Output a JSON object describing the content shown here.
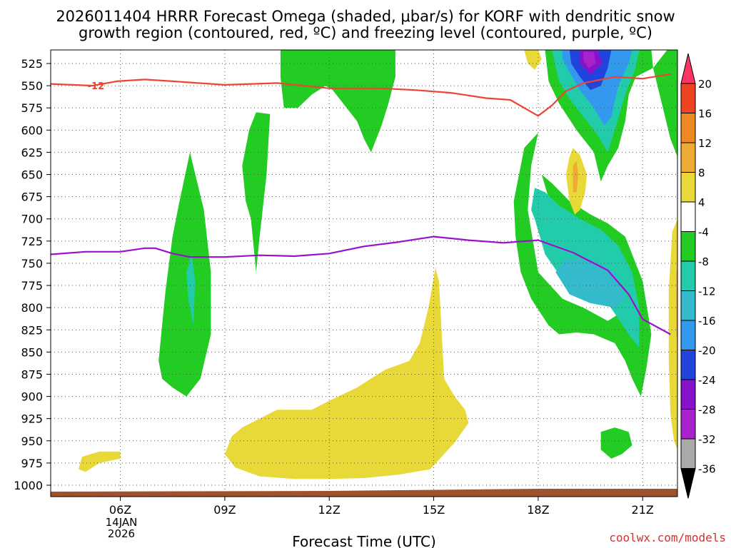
{
  "title": {
    "line1": "2026011404 HRRR Forecast Omega (shaded, μbar/s) for KORF with dendritic snow",
    "line2": "growth region (contoured, red, ºC) and freezing level (contoured, purple, ºC)"
  },
  "credit": "coolwx.com/models",
  "colors": {
    "dgz_line": "#ee4433",
    "freezing_line": "#9911cc",
    "terrain": "#a0522d",
    "grid": "#555555"
  },
  "chart_data": {
    "type": "time-height",
    "xlabel": "Forecast Time (UTC)",
    "ylabel": "",
    "x_ticks": [
      "06Z",
      "09Z",
      "12Z",
      "15Z",
      "18Z",
      "21Z"
    ],
    "x_tick_hours": [
      6,
      9,
      12,
      15,
      18,
      21
    ],
    "x_range_hours": [
      4,
      22
    ],
    "date_label": [
      "14JAN",
      "2026"
    ],
    "y_ticks": [
      525,
      550,
      575,
      600,
      625,
      650,
      675,
      700,
      725,
      750,
      775,
      800,
      825,
      850,
      875,
      900,
      925,
      950,
      975,
      1000
    ],
    "y_range_mb": [
      1002,
      510
    ],
    "dgz_contour_label": "-12",
    "colorbar": {
      "labels": [
        "20",
        "16",
        "12",
        "8",
        "4",
        "-4",
        "-8",
        "-12",
        "-16",
        "-20",
        "-24",
        "-28",
        "-32",
        "-36"
      ],
      "colors": [
        "#ff3366",
        "#ee4422",
        "#ee8822",
        "#eeaa33",
        "#e8d838",
        "#ffffff",
        "#22cc22",
        "#22ccaa",
        "#33bbcc",
        "#3399ee",
        "#2244dd",
        "#8811cc",
        "#aa22cc",
        "#aaaaaa",
        "#000000"
      ]
    },
    "series": [
      {
        "name": "-12",
        "color": "#ee4433",
        "points": [
          [
            4,
            548
          ],
          [
            5.2,
            550
          ],
          [
            5.9,
            545
          ],
          [
            6.7,
            543
          ],
          [
            7.5,
            545
          ],
          [
            9,
            549
          ],
          [
            10.5,
            547
          ],
          [
            12,
            553
          ],
          [
            13.5,
            553
          ],
          [
            14.5,
            555
          ],
          [
            15.5,
            558
          ],
          [
            16.5,
            564
          ],
          [
            17.2,
            566
          ],
          [
            18,
            584
          ],
          [
            18.4,
            572
          ],
          [
            18.8,
            556
          ],
          [
            19.3,
            547
          ],
          [
            20.2,
            540
          ],
          [
            21,
            542
          ],
          [
            21.8,
            537
          ]
        ]
      },
      {
        "name": "freezing",
        "color": "#9911cc",
        "points": [
          [
            4,
            740
          ],
          [
            5,
            737
          ],
          [
            6,
            737
          ],
          [
            6.7,
            733
          ],
          [
            7,
            733
          ],
          [
            7.5,
            739
          ],
          [
            8,
            743
          ],
          [
            9,
            743
          ],
          [
            10,
            741
          ],
          [
            11,
            742
          ],
          [
            12,
            739
          ],
          [
            13,
            731
          ],
          [
            14,
            726
          ],
          [
            15,
            720
          ],
          [
            16,
            724
          ],
          [
            17,
            727
          ],
          [
            18,
            724
          ],
          [
            19,
            738
          ],
          [
            20,
            758
          ],
          [
            20.6,
            785
          ],
          [
            21,
            813
          ],
          [
            21.8,
            830
          ]
        ]
      }
    ],
    "regions": [
      {
        "level": "-8",
        "color": "#22cc22",
        "polygon": [
          [
            7.1,
            860
          ],
          [
            7.2,
            820
          ],
          [
            7.3,
            780
          ],
          [
            7.5,
            720
          ],
          [
            7.7,
            680
          ],
          [
            8,
            625
          ],
          [
            8.4,
            690
          ],
          [
            8.6,
            760
          ],
          [
            8.6,
            830
          ],
          [
            8.3,
            880
          ],
          [
            7.9,
            900
          ],
          [
            7.5,
            890
          ],
          [
            7.2,
            880
          ]
        ]
      },
      {
        "level": "-12",
        "color": "#22ccaa",
        "polygon": [
          [
            7.9,
            760
          ],
          [
            8.05,
            740
          ],
          [
            8.15,
            770
          ],
          [
            8.1,
            820
          ],
          [
            7.95,
            790
          ]
        ]
      },
      {
        "level": "-8",
        "color": "#22cc22",
        "polygon": [
          [
            9.5,
            640
          ],
          [
            9.7,
            600
          ],
          [
            9.9,
            580
          ],
          [
            10.3,
            582
          ],
          [
            10.2,
            650
          ],
          [
            10,
            720
          ],
          [
            9.9,
            760
          ],
          [
            9.75,
            700
          ],
          [
            9.6,
            680
          ]
        ]
      },
      {
        "level": "-8",
        "color": "#22cc22",
        "polygon": [
          [
            11.5,
            510
          ],
          [
            13.9,
            510
          ],
          [
            13.9,
            540
          ],
          [
            13.7,
            570
          ],
          [
            13.5,
            595
          ],
          [
            13.2,
            625
          ],
          [
            13,
            610
          ],
          [
            12.8,
            590
          ],
          [
            12.4,
            570
          ],
          [
            12.1,
            555
          ],
          [
            11.9,
            550
          ],
          [
            11.5,
            560
          ],
          [
            11.1,
            575
          ],
          [
            10.7,
            575
          ],
          [
            10.6,
            540
          ],
          [
            10.6,
            510
          ]
        ]
      },
      {
        "level": "4",
        "color": "#e8d838",
        "polygon": [
          [
            9,
            965
          ],
          [
            9.2,
            945
          ],
          [
            9.5,
            935
          ],
          [
            10.5,
            915
          ],
          [
            11.5,
            915
          ],
          [
            12,
            905
          ],
          [
            12.8,
            890
          ],
          [
            13.6,
            870
          ],
          [
            14.3,
            860
          ],
          [
            14.6,
            840
          ],
          [
            14.85,
            800
          ],
          [
            15.05,
            755
          ],
          [
            15.15,
            770
          ],
          [
            15.3,
            880
          ],
          [
            15.6,
            900
          ],
          [
            15.9,
            915
          ],
          [
            16,
            930
          ],
          [
            15.6,
            952
          ],
          [
            14.9,
            982
          ],
          [
            14,
            988
          ],
          [
            13,
            992
          ],
          [
            12,
            993
          ],
          [
            11,
            993
          ],
          [
            10,
            990
          ],
          [
            9.3,
            980
          ]
        ]
      },
      {
        "level": "4",
        "color": "#e8d838",
        "polygon": [
          [
            4.8,
            982
          ],
          [
            4.9,
            968
          ],
          [
            5.4,
            962
          ],
          [
            6,
            962
          ],
          [
            6,
            970
          ],
          [
            5.4,
            975
          ],
          [
            5,
            985
          ]
        ]
      },
      {
        "level": "4",
        "color": "#e8d838",
        "polygon": [
          [
            18,
            510
          ],
          [
            17.6,
            510
          ],
          [
            17.7,
            525
          ],
          [
            17.9,
            532
          ],
          [
            18.1,
            520
          ]
        ]
      },
      {
        "level": "-8",
        "color": "#22cc22",
        "polygon": [
          [
            18.2,
            510
          ],
          [
            21.25,
            510
          ],
          [
            21.3,
            530
          ],
          [
            20.8,
            540
          ],
          [
            20.6,
            560
          ],
          [
            20.5,
            590
          ],
          [
            20.3,
            620
          ],
          [
            20,
            640
          ],
          [
            19.8,
            658
          ],
          [
            19.6,
            625
          ],
          [
            19.1,
            600
          ],
          [
            18.6,
            570
          ],
          [
            18.3,
            545
          ]
        ]
      },
      {
        "level": "-12",
        "color": "#22ccaa",
        "polygon": [
          [
            18.4,
            510
          ],
          [
            20.9,
            510
          ],
          [
            20.8,
            530
          ],
          [
            20.5,
            560
          ],
          [
            20.2,
            600
          ],
          [
            20,
            625
          ],
          [
            19.7,
            605
          ],
          [
            19.3,
            585
          ],
          [
            18.9,
            565
          ],
          [
            18.6,
            545
          ],
          [
            18.45,
            520
          ]
        ]
      },
      {
        "level": "-16",
        "color": "#3399ee",
        "polygon": [
          [
            18.7,
            510
          ],
          [
            20.7,
            510
          ],
          [
            20.6,
            525
          ],
          [
            20.3,
            550
          ],
          [
            20.1,
            585
          ],
          [
            19.9,
            595
          ],
          [
            19.6,
            575
          ],
          [
            19.2,
            555
          ],
          [
            18.9,
            535
          ],
          [
            18.7,
            520
          ]
        ]
      },
      {
        "level": "-20",
        "color": "#2244dd",
        "polygon": [
          [
            18.9,
            510
          ],
          [
            20.1,
            510
          ],
          [
            20,
            530
          ],
          [
            19.8,
            550
          ],
          [
            19.5,
            555
          ],
          [
            19.2,
            540
          ],
          [
            18.95,
            525
          ]
        ]
      },
      {
        "level": "-24",
        "color": "#8811cc",
        "polygon": [
          [
            19.2,
            510
          ],
          [
            19.7,
            510
          ],
          [
            19.85,
            525
          ],
          [
            19.5,
            537
          ],
          [
            19.2,
            525
          ]
        ]
      },
      {
        "level": "-28",
        "color": "#aa22cc",
        "polygon": [
          [
            19.3,
            512
          ],
          [
            19.6,
            512
          ],
          [
            19.65,
            525
          ],
          [
            19.45,
            530
          ],
          [
            19.3,
            522
          ]
        ]
      },
      {
        "level": "-8",
        "color": "#22cc22",
        "polygon": [
          [
            21.7,
            510
          ],
          [
            22,
            510
          ],
          [
            22,
            630
          ],
          [
            21.8,
            610
          ],
          [
            21.55,
            570
          ],
          [
            21.3,
            530
          ]
        ]
      },
      {
        "level": "-8",
        "color": "#22cc22",
        "polygon": [
          [
            17.3,
            680
          ],
          [
            17.6,
            620
          ],
          [
            18,
            603
          ],
          [
            17.8,
            640
          ],
          [
            17.7,
            690
          ],
          [
            18,
            760
          ],
          [
            18.7,
            790
          ],
          [
            19.3,
            800
          ],
          [
            20,
            815
          ],
          [
            20.4,
            805
          ],
          [
            19.9,
            760
          ],
          [
            19.4,
            730
          ],
          [
            18.9,
            715
          ],
          [
            18.4,
            690
          ],
          [
            18.1,
            650
          ],
          [
            18.4,
            660
          ],
          [
            18.9,
            680
          ],
          [
            19.5,
            695
          ],
          [
            20,
            705
          ],
          [
            20.5,
            720
          ],
          [
            21,
            770
          ],
          [
            21.25,
            830
          ],
          [
            21.1,
            870
          ],
          [
            20.95,
            900
          ],
          [
            20.7,
            880
          ],
          [
            20.5,
            860
          ],
          [
            20.2,
            840
          ],
          [
            19.6,
            830
          ],
          [
            19.1,
            828
          ],
          [
            18.6,
            830
          ],
          [
            18.3,
            820
          ],
          [
            17.8,
            790
          ],
          [
            17.5,
            760
          ],
          [
            17.35,
            720
          ]
        ]
      },
      {
        "level": "-12",
        "color": "#22ccaa",
        "polygon": [
          [
            17.8,
            690
          ],
          [
            17.9,
            700
          ],
          [
            18.2,
            740
          ],
          [
            18.7,
            768
          ],
          [
            19.3,
            778
          ],
          [
            20,
            795
          ],
          [
            20.6,
            830
          ],
          [
            20.9,
            845
          ],
          [
            20.9,
            800
          ],
          [
            20.7,
            760
          ],
          [
            20.3,
            730
          ],
          [
            19.8,
            712
          ],
          [
            19.2,
            700
          ],
          [
            18.6,
            685
          ],
          [
            18.2,
            670
          ],
          [
            17.9,
            665
          ]
        ]
      },
      {
        "level": "-16",
        "color": "#33bbcc",
        "polygon": [
          [
            18.5,
            760
          ],
          [
            18.8,
            745
          ],
          [
            19.5,
            745
          ],
          [
            20.2,
            760
          ],
          [
            20.5,
            790
          ],
          [
            20.2,
            800
          ],
          [
            19.5,
            795
          ],
          [
            18.9,
            785
          ]
        ]
      },
      {
        "level": "4",
        "color": "#e8d838",
        "polygon": [
          [
            18.8,
            650
          ],
          [
            18.9,
            630
          ],
          [
            19,
            620
          ],
          [
            19.2,
            628
          ],
          [
            19.4,
            650
          ],
          [
            19.35,
            670
          ],
          [
            19.2,
            690
          ],
          [
            19.05,
            695
          ],
          [
            18.9,
            680
          ]
        ]
      },
      {
        "level": "8",
        "color": "#eeaa33",
        "polygon": [
          [
            19,
            640
          ],
          [
            19.1,
            635
          ],
          [
            19.15,
            650
          ],
          [
            19.1,
            670
          ],
          [
            19,
            670
          ]
        ]
      },
      {
        "level": "-8",
        "color": "#22cc22",
        "polygon": [
          [
            19.8,
            940
          ],
          [
            20.2,
            935
          ],
          [
            20.6,
            940
          ],
          [
            20.7,
            955
          ],
          [
            20.4,
            965
          ],
          [
            20.1,
            970
          ],
          [
            19.8,
            960
          ]
        ]
      },
      {
        "level": "4",
        "color": "#e8d838",
        "polygon": [
          [
            21.85,
            715
          ],
          [
            22,
            700
          ],
          [
            22,
            960
          ],
          [
            21.9,
            950
          ],
          [
            21.8,
            920
          ],
          [
            21.75,
            860
          ],
          [
            21.75,
            780
          ]
        ]
      },
      {
        "level": "8",
        "color": "#eeaa33",
        "polygon": [
          [
            21.97,
            760
          ],
          [
            22,
            755
          ],
          [
            22,
            840
          ],
          [
            21.97,
            830
          ]
        ]
      }
    ]
  }
}
